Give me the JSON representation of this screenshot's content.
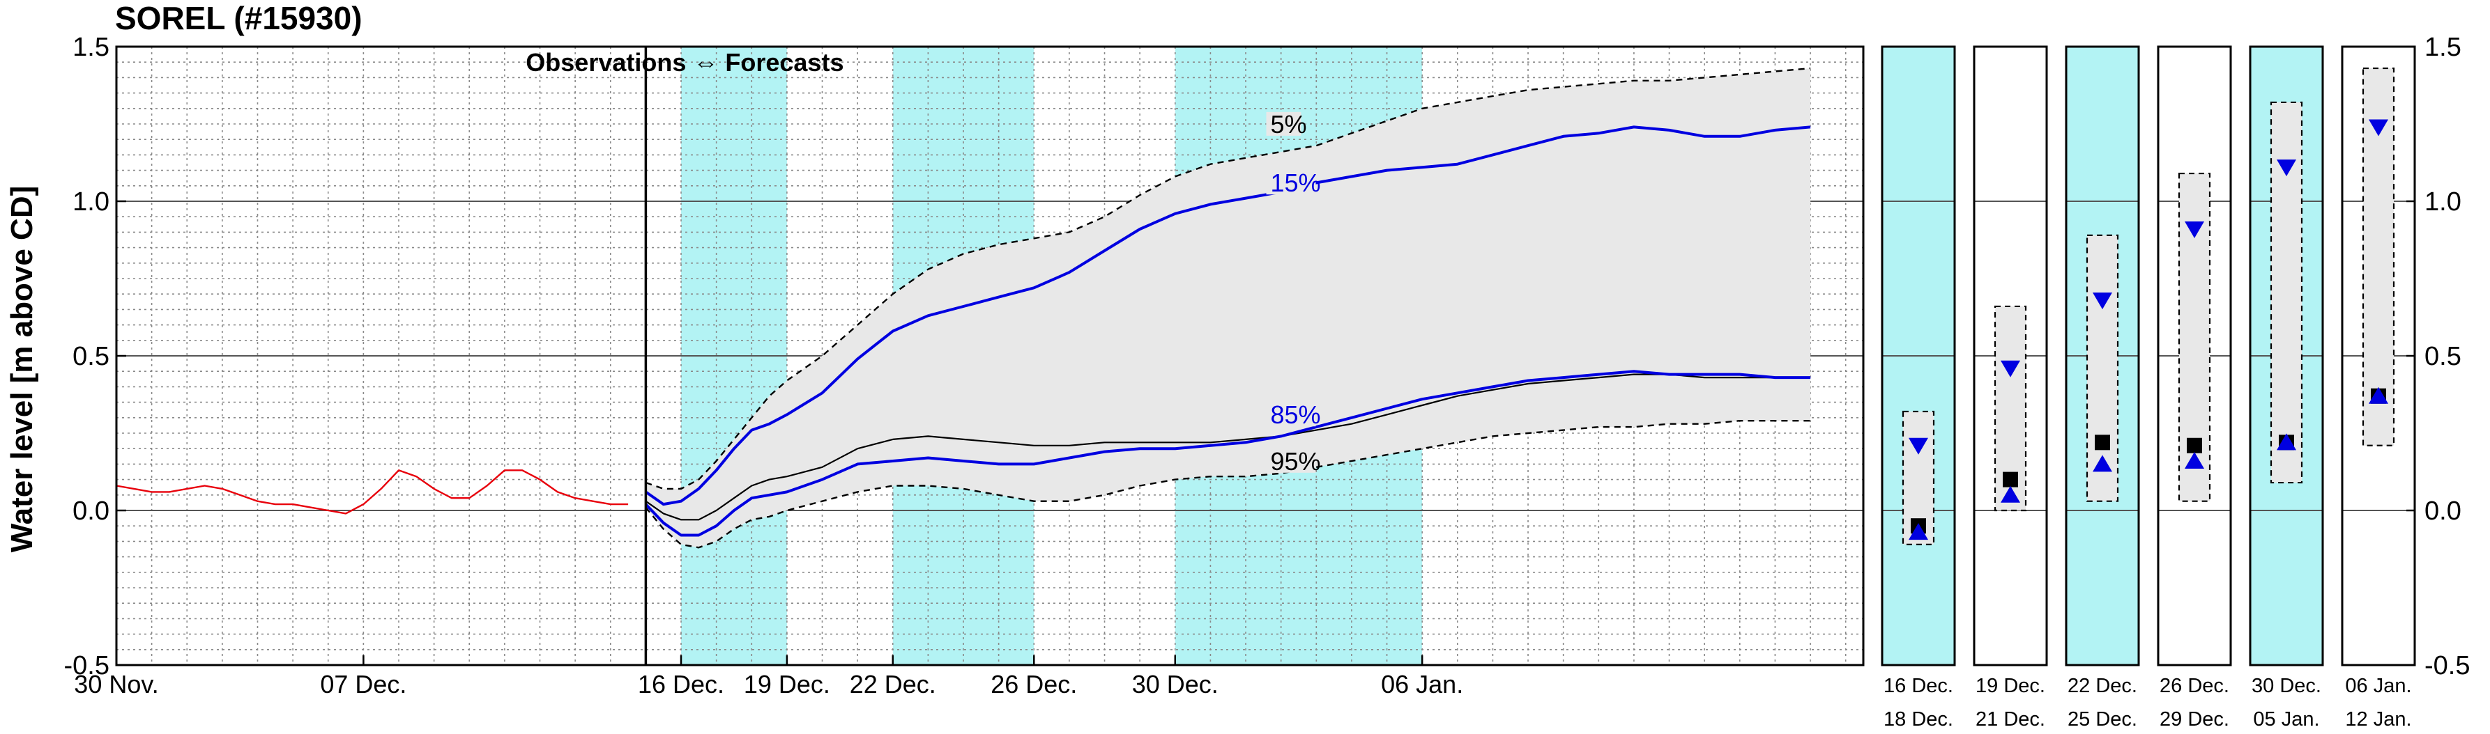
{
  "chart_data": {
    "type": "line",
    "title": "SOREL (#15930)",
    "ylabel": "Water level [m above CD]",
    "ylim": [
      -0.5,
      1.5
    ],
    "yticks": [
      "-0.5",
      "0.0",
      "0.5",
      "1.0",
      "1.5"
    ],
    "xlim": [
      0,
      49.5
    ],
    "grid": true,
    "x_ticks": [
      {
        "x": 0,
        "label": "30 Nov."
      },
      {
        "x": 7,
        "label": "07 Dec."
      },
      {
        "x": 16,
        "label": "16 Dec."
      },
      {
        "x": 19,
        "label": "19 Dec."
      },
      {
        "x": 22,
        "label": "22 Dec."
      },
      {
        "x": 26,
        "label": "26 Dec."
      },
      {
        "x": 30,
        "label": "30 Dec."
      },
      {
        "x": 37,
        "label": "06 Jan."
      }
    ],
    "annotation": "Observations ⇔ Forecasts",
    "observation_forecast_split": 15,
    "shaded_periods": [
      [
        16,
        19
      ],
      [
        22,
        26
      ],
      [
        30,
        37
      ]
    ],
    "series": [
      {
        "role": "observed",
        "color": "#e8000b",
        "x": [
          0,
          0.5,
          1,
          1.5,
          2,
          2.5,
          3,
          3.5,
          4,
          4.5,
          5,
          5.5,
          6,
          6.5,
          7,
          7.5,
          8,
          8.5,
          9,
          9.5,
          10,
          10.5,
          11,
          11.5,
          12,
          12.5,
          13,
          13.5,
          14,
          14.5
        ],
        "y": [
          0.08,
          0.07,
          0.06,
          0.06,
          0.07,
          0.08,
          0.07,
          0.05,
          0.03,
          0.02,
          0.02,
          0.01,
          0.0,
          -0.01,
          0.02,
          0.07,
          0.13,
          0.11,
          0.07,
          0.04,
          0.04,
          0.08,
          0.13,
          0.13,
          0.1,
          0.06,
          0.04,
          0.03,
          0.02,
          0.02
        ]
      },
      {
        "name": "5%",
        "role": "envelope",
        "color": "#000000",
        "dash": true,
        "x": [
          15,
          15.5,
          16,
          16.5,
          17,
          17.5,
          18,
          18.5,
          19,
          20,
          21,
          22,
          23,
          24,
          25,
          26,
          27,
          28,
          29,
          30,
          31,
          32,
          33,
          34,
          35,
          36,
          37,
          38,
          39,
          40,
          41,
          42,
          43,
          44,
          45,
          46,
          47,
          48
        ],
        "y": [
          0.09,
          0.07,
          0.07,
          0.1,
          0.16,
          0.23,
          0.3,
          0.37,
          0.42,
          0.5,
          0.6,
          0.7,
          0.78,
          0.83,
          0.86,
          0.88,
          0.9,
          0.95,
          1.02,
          1.08,
          1.12,
          1.14,
          1.16,
          1.18,
          1.22,
          1.26,
          1.3,
          1.32,
          1.34,
          1.36,
          1.37,
          1.38,
          1.39,
          1.39,
          1.4,
          1.41,
          1.42,
          1.43
        ]
      },
      {
        "name": "15%",
        "role": "percentile",
        "color": "#0000e0",
        "x": [
          15,
          15.5,
          16,
          16.5,
          17,
          17.5,
          18,
          18.5,
          19,
          20,
          21,
          22,
          23,
          24,
          25,
          26,
          27,
          28,
          29,
          30,
          31,
          32,
          33,
          34,
          35,
          36,
          37,
          38,
          39,
          40,
          41,
          42,
          43,
          44,
          45,
          46,
          47,
          48
        ],
        "y": [
          0.06,
          0.02,
          0.03,
          0.07,
          0.13,
          0.2,
          0.26,
          0.28,
          0.31,
          0.38,
          0.49,
          0.58,
          0.63,
          0.66,
          0.69,
          0.72,
          0.77,
          0.84,
          0.91,
          0.96,
          0.99,
          1.01,
          1.03,
          1.06,
          1.08,
          1.1,
          1.11,
          1.12,
          1.15,
          1.18,
          1.21,
          1.22,
          1.24,
          1.23,
          1.21,
          1.21,
          1.23,
          1.24
        ]
      },
      {
        "name": "median",
        "role": "median",
        "color": "#000000",
        "x": [
          15,
          15.5,
          16,
          16.5,
          17,
          17.5,
          18,
          18.5,
          19,
          20,
          21,
          22,
          23,
          24,
          25,
          26,
          27,
          28,
          29,
          30,
          31,
          32,
          33,
          34,
          35,
          36,
          37,
          38,
          39,
          40,
          41,
          42,
          43,
          44,
          45,
          46,
          47,
          48
        ],
        "y": [
          0.03,
          -0.01,
          -0.03,
          -0.03,
          0.0,
          0.04,
          0.08,
          0.1,
          0.11,
          0.14,
          0.2,
          0.23,
          0.24,
          0.23,
          0.22,
          0.21,
          0.21,
          0.22,
          0.22,
          0.22,
          0.22,
          0.23,
          0.24,
          0.26,
          0.28,
          0.31,
          0.34,
          0.37,
          0.39,
          0.41,
          0.42,
          0.43,
          0.44,
          0.44,
          0.43,
          0.43,
          0.43,
          0.43
        ]
      },
      {
        "name": "85%",
        "role": "percentile",
        "color": "#0000e0",
        "x": [
          15,
          15.5,
          16,
          16.5,
          17,
          17.5,
          18,
          18.5,
          19,
          20,
          21,
          22,
          23,
          24,
          25,
          26,
          27,
          28,
          29,
          30,
          31,
          32,
          33,
          34,
          35,
          36,
          37,
          38,
          39,
          40,
          41,
          42,
          43,
          44,
          45,
          46,
          47,
          48
        ],
        "y": [
          0.02,
          -0.04,
          -0.08,
          -0.08,
          -0.05,
          0.0,
          0.04,
          0.05,
          0.06,
          0.1,
          0.15,
          0.16,
          0.17,
          0.16,
          0.15,
          0.15,
          0.17,
          0.19,
          0.2,
          0.2,
          0.21,
          0.22,
          0.24,
          0.27,
          0.3,
          0.33,
          0.36,
          0.38,
          0.4,
          0.42,
          0.43,
          0.44,
          0.45,
          0.44,
          0.44,
          0.44,
          0.43,
          0.43
        ]
      },
      {
        "name": "95%",
        "role": "envelope",
        "color": "#000000",
        "dash": true,
        "x": [
          15,
          15.5,
          16,
          16.5,
          17,
          17.5,
          18,
          18.5,
          19,
          20,
          21,
          22,
          23,
          24,
          25,
          26,
          27,
          28,
          29,
          30,
          31,
          32,
          33,
          34,
          35,
          36,
          37,
          38,
          39,
          40,
          41,
          42,
          43,
          44,
          45,
          46,
          47,
          48
        ],
        "y": [
          0.01,
          -0.06,
          -0.11,
          -0.12,
          -0.1,
          -0.06,
          -0.03,
          -0.02,
          0.0,
          0.03,
          0.06,
          0.08,
          0.08,
          0.07,
          0.05,
          0.03,
          0.03,
          0.05,
          0.08,
          0.1,
          0.11,
          0.11,
          0.12,
          0.14,
          0.16,
          0.18,
          0.2,
          0.22,
          0.24,
          0.25,
          0.26,
          0.27,
          0.27,
          0.28,
          0.28,
          0.29,
          0.29,
          0.29
        ]
      }
    ],
    "labels": [
      {
        "text": "5%",
        "x": 32.7,
        "y": 1.23,
        "color": "#000000"
      },
      {
        "text": "15%",
        "x": 32.7,
        "y": 1.04,
        "color": "#0000e0"
      },
      {
        "text": "85%",
        "x": 32.7,
        "y": 0.29,
        "color": "#0000e0"
      },
      {
        "text": "95%",
        "x": 32.7,
        "y": 0.14,
        "color": "#000000"
      }
    ],
    "period_panels": [
      {
        "line1": "16 Dec.",
        "line2": "18 Dec.",
        "shaded": true,
        "box": [
          -0.11,
          0.32
        ],
        "down": 0.21,
        "square": -0.05,
        "up": -0.07
      },
      {
        "line1": "19 Dec.",
        "line2": "21 Dec.",
        "shaded": false,
        "box": [
          0.0,
          0.66
        ],
        "down": 0.46,
        "square": 0.1,
        "up": 0.05
      },
      {
        "line1": "22 Dec.",
        "line2": "25 Dec.",
        "shaded": true,
        "box": [
          0.03,
          0.89
        ],
        "down": 0.68,
        "square": 0.22,
        "up": 0.15
      },
      {
        "line1": "26 Dec.",
        "line2": "29 Dec.",
        "shaded": false,
        "box": [
          0.03,
          1.09
        ],
        "down": 0.91,
        "square": 0.21,
        "up": 0.16
      },
      {
        "line1": "30 Dec.",
        "line2": "05 Jan.",
        "shaded": true,
        "box": [
          0.09,
          1.32
        ],
        "down": 1.11,
        "square": 0.22,
        "up": 0.22
      },
      {
        "line1": "06 Jan.",
        "line2": "12 Jan.",
        "shaded": false,
        "box": [
          0.21,
          1.43
        ],
        "down": 1.24,
        "square": 0.37,
        "up": 0.37
      }
    ],
    "colors": {
      "shade": "#b3f3f4",
      "envelope_fill": "#e8e8e8",
      "observed": "#e8000b",
      "percentile": "#0000e0"
    }
  }
}
